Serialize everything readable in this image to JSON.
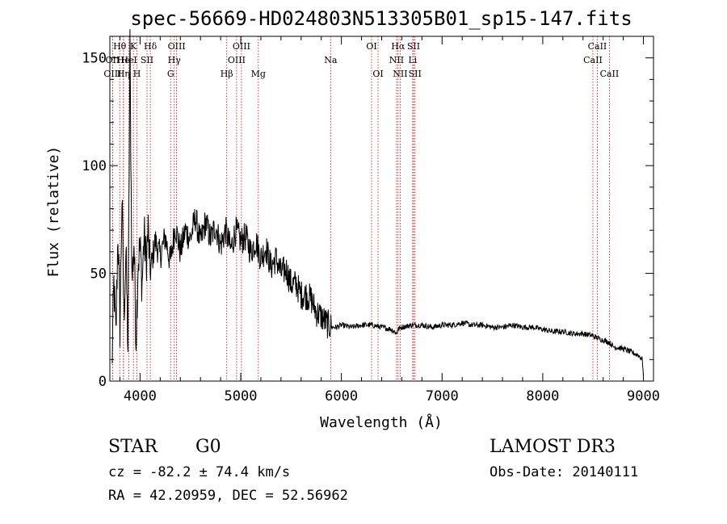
{
  "chart_data": {
    "type": "line",
    "title": "spec-56669-HD024803N513305B01_sp15-147.fits",
    "xlabel": "Wavelength (Å)",
    "ylabel": "Flux (relative)",
    "xlim": [
      3700,
      9100
    ],
    "ylim": [
      0,
      160
    ],
    "xticks": [
      4000,
      5000,
      6000,
      7000,
      8000,
      9000
    ],
    "xtick_labels": [
      "4000",
      "5000",
      "6000",
      "7000",
      "8000",
      "9000"
    ],
    "yticks": [
      0,
      50,
      100,
      150
    ],
    "ytick_labels": [
      "0",
      "50",
      "100",
      "150"
    ],
    "line_color": "#000000",
    "marker_color": "#cc0000",
    "series": [
      {
        "name": "flux",
        "x": [
          3720,
          3740,
          3760,
          3780,
          3800,
          3820,
          3840,
          3860,
          3880,
          3900,
          3920,
          3940,
          3960,
          3980,
          4000,
          4020,
          4040,
          4060,
          4080,
          4100,
          4150,
          4200,
          4250,
          4300,
          4350,
          4400,
          4450,
          4500,
          4550,
          4600,
          4650,
          4700,
          4750,
          4800,
          4850,
          4900,
          4950,
          5000,
          5050,
          5100,
          5150,
          5200,
          5250,
          5300,
          5350,
          5400,
          5450,
          5500,
          5550,
          5600,
          5650,
          5700,
          5750,
          5800,
          5850,
          5900,
          5950,
          6000,
          6100,
          6200,
          6300,
          6400,
          6500,
          6550,
          6560,
          6600,
          6700,
          6800,
          6900,
          7000,
          7100,
          7200,
          7300,
          7400,
          7500,
          7600,
          7700,
          7800,
          7900,
          8000,
          8100,
          8200,
          8300,
          8400,
          8500,
          8540,
          8600,
          8660,
          8700,
          8800,
          8900,
          8950,
          8990,
          9000
        ],
        "y": [
          5,
          45,
          20,
          70,
          25,
          85,
          30,
          60,
          15,
          155,
          45,
          65,
          20,
          55,
          62,
          45,
          68,
          55,
          70,
          50,
          65,
          58,
          67,
          55,
          72,
          60,
          70,
          66,
          76,
          64,
          74,
          66,
          72,
          63,
          70,
          61,
          70,
          65,
          67,
          60,
          65,
          57,
          62,
          53,
          57,
          50,
          52,
          45,
          45,
          40,
          40,
          38,
          32,
          30,
          27,
          25,
          25,
          26,
          25,
          26,
          26,
          25,
          24,
          22,
          24,
          25,
          26,
          26,
          25,
          26,
          26,
          27,
          26,
          26,
          25,
          25,
          26,
          25,
          25,
          24,
          23,
          23,
          22,
          22,
          21,
          20,
          19,
          18,
          16,
          15,
          13,
          12,
          10,
          2
        ]
      }
    ],
    "line_markers": [
      {
        "label": "Hθ",
        "wave": 3798,
        "row": 1
      },
      {
        "label": "OII",
        "wave": 3727,
        "row": 2
      },
      {
        "label": "OIII",
        "wave": 3727,
        "row": 3
      },
      {
        "label": "He",
        "wave": 3835,
        "row": 2
      },
      {
        "label": "Hη",
        "wave": 3835,
        "row": 3
      },
      {
        "label": "K",
        "wave": 3934,
        "row": 1
      },
      {
        "label": "HeI",
        "wave": 3889,
        "row": 2
      },
      {
        "label": "H",
        "wave": 3969,
        "row": 3
      },
      {
        "label": "SII",
        "wave": 4069,
        "row": 2
      },
      {
        "label": "Hδ",
        "wave": 4102,
        "row": 1
      },
      {
        "label": "OIII",
        "wave": 4363,
        "row": 1
      },
      {
        "label": "Hγ",
        "wave": 4340,
        "row": 2
      },
      {
        "label": "G",
        "wave": 4304,
        "row": 3
      },
      {
        "label": "Hβ",
        "wave": 4861,
        "row": 3
      },
      {
        "label": "OIII",
        "wave": 5007,
        "row": 1
      },
      {
        "label": "OIII",
        "wave": 4959,
        "row": 2
      },
      {
        "label": "Mg",
        "wave": 5175,
        "row": 3
      },
      {
        "label": "Na",
        "wave": 5893,
        "row": 2
      },
      {
        "label": "OI",
        "wave": 6300,
        "row": 1
      },
      {
        "label": "OI",
        "wave": 6364,
        "row": 3
      },
      {
        "label": "Hα",
        "wave": 6563,
        "row": 1
      },
      {
        "label": "NII",
        "wave": 6548,
        "row": 2
      },
      {
        "label": "NII",
        "wave": 6584,
        "row": 3
      },
      {
        "label": "SII",
        "wave": 6717,
        "row": 1
      },
      {
        "label": "Li",
        "wave": 6708,
        "row": 2
      },
      {
        "label": "SII",
        "wave": 6731,
        "row": 3
      },
      {
        "label": "CaII",
        "wave": 8542,
        "row": 1
      },
      {
        "label": "CaII",
        "wave": 8498,
        "row": 2
      },
      {
        "label": "CaII",
        "wave": 8662,
        "row": 3
      }
    ]
  },
  "footer": {
    "object_class": "STAR",
    "subclass": "G0",
    "survey": "LAMOST DR3",
    "redshift": "cz = -82.2 ± 74.4 km/s",
    "obs_date": "Obs-Date: 20140111",
    "coords": "RA =  42.20959, DEC =  52.56962"
  }
}
